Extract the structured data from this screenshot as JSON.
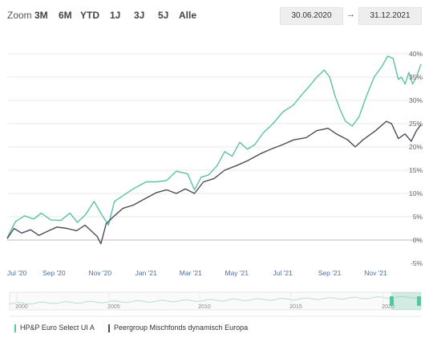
{
  "toolbar": {
    "zoom_label": "Zoom",
    "buttons": [
      "3M",
      "6M",
      "YTD",
      "1J",
      "3J",
      "5J",
      "Alle"
    ],
    "date_from": "30.06.2020",
    "date_to": "31.12.2021",
    "arrow": "→"
  },
  "navigator": {
    "year_labels": [
      "2000",
      "2005",
      "2010",
      "2015",
      "2020"
    ]
  },
  "colors": {
    "fund": "#5cc2a5",
    "peer": "#4a4d5a",
    "zero_line": "#bbbbbb",
    "grid": "#e8e8e8"
  },
  "chart_data": {
    "type": "line",
    "title": "",
    "xlabel": "",
    "ylabel": "",
    "ylim": [
      -5,
      42
    ],
    "xlim": [
      "2020-07-01",
      "2021-12-31"
    ],
    "grid": true,
    "legend_position": "bottom",
    "x_tick_labels": [
      "Jul '20",
      "Sep '20",
      "Nov '20",
      "Jan '21",
      "Mar '21",
      "May '21",
      "Jul '21",
      "Sep '21",
      "Nov '21"
    ],
    "x_tick_dates": [
      "2020-07-01",
      "2020-09-01",
      "2020-11-01",
      "2021-01-01",
      "2021-03-01",
      "2021-05-01",
      "2021-07-01",
      "2021-09-01",
      "2021-11-01"
    ],
    "y_ticks": [
      -5,
      0,
      5,
      10,
      15,
      20,
      25,
      30,
      35,
      40
    ],
    "y_tick_labels": [
      "-5%",
      "0%",
      "5%",
      "10%",
      "15%",
      "20%",
      "25%",
      "30%",
      "35%",
      "40%"
    ],
    "series": [
      {
        "name": "HP&P Euro Select UI A",
        "color": "#5cc2a5",
        "points": [
          [
            "2020-07-01",
            0.5
          ],
          [
            "2020-07-12",
            4
          ],
          [
            "2020-07-24",
            5.2
          ],
          [
            "2020-08-05",
            4.5
          ],
          [
            "2020-08-15",
            5.8
          ],
          [
            "2020-08-28",
            4.3
          ],
          [
            "2020-09-10",
            4.2
          ],
          [
            "2020-09-22",
            5.8
          ],
          [
            "2020-10-02",
            3.8
          ],
          [
            "2020-10-13",
            5.5
          ],
          [
            "2020-10-24",
            8.3
          ],
          [
            "2020-11-03",
            5.5
          ],
          [
            "2020-11-12",
            3.2
          ],
          [
            "2020-11-20",
            8.3
          ],
          [
            "2020-12-01",
            9.5
          ],
          [
            "2020-12-15",
            11
          ],
          [
            "2021-01-01",
            12.5
          ],
          [
            "2021-01-15",
            12.5
          ],
          [
            "2021-01-28",
            12.8
          ],
          [
            "2021-02-10",
            14.8
          ],
          [
            "2021-02-25",
            14.2
          ],
          [
            "2021-03-06",
            10.8
          ],
          [
            "2021-03-15",
            13.5
          ],
          [
            "2021-03-25",
            14
          ],
          [
            "2021-04-05",
            16
          ],
          [
            "2021-04-15",
            19
          ],
          [
            "2021-04-25",
            18
          ],
          [
            "2021-05-05",
            21
          ],
          [
            "2021-05-15",
            19.5
          ],
          [
            "2021-05-25",
            20.5
          ],
          [
            "2021-06-05",
            23
          ],
          [
            "2021-06-18",
            25
          ],
          [
            "2021-07-01",
            27.5
          ],
          [
            "2021-07-15",
            29
          ],
          [
            "2021-07-25",
            31
          ],
          [
            "2021-08-05",
            33
          ],
          [
            "2021-08-15",
            35
          ],
          [
            "2021-08-25",
            36.5
          ],
          [
            "2021-09-01",
            35
          ],
          [
            "2021-09-08",
            31
          ],
          [
            "2021-09-15",
            28
          ],
          [
            "2021-09-22",
            25.5
          ],
          [
            "2021-10-01",
            24.5
          ],
          [
            "2021-10-10",
            26.5
          ],
          [
            "2021-10-20",
            31
          ],
          [
            "2021-10-30",
            35
          ],
          [
            "2021-11-10",
            37.5
          ],
          [
            "2021-11-17",
            39.5
          ],
          [
            "2021-11-24",
            39
          ],
          [
            "2021-12-01",
            34.5
          ],
          [
            "2021-12-05",
            35
          ],
          [
            "2021-12-10",
            33.5
          ],
          [
            "2021-12-15",
            36
          ],
          [
            "2021-12-20",
            33.5
          ],
          [
            "2021-12-25",
            35
          ],
          [
            "2021-12-31",
            37.8
          ]
        ]
      },
      {
        "name": "Peergroup Mischfonds dynamisch Europa",
        "color": "#4a4d5a",
        "points": [
          [
            "2020-07-01",
            0.3
          ],
          [
            "2020-07-10",
            2.5
          ],
          [
            "2020-07-20",
            1.5
          ],
          [
            "2020-08-01",
            2.2
          ],
          [
            "2020-08-12",
            1.0
          ],
          [
            "2020-08-25",
            2.0
          ],
          [
            "2020-09-05",
            2.8
          ],
          [
            "2020-09-18",
            2.5
          ],
          [
            "2020-10-01",
            2.0
          ],
          [
            "2020-10-12",
            3.2
          ],
          [
            "2020-10-20",
            2.0
          ],
          [
            "2020-10-28",
            0.8
          ],
          [
            "2020-11-02",
            -0.8
          ],
          [
            "2020-11-09",
            3.5
          ],
          [
            "2020-11-20",
            5.2
          ],
          [
            "2020-12-01",
            6.8
          ],
          [
            "2020-12-15",
            7.5
          ],
          [
            "2021-01-01",
            9.0
          ],
          [
            "2021-01-15",
            10.2
          ],
          [
            "2021-01-28",
            10.8
          ],
          [
            "2021-02-10",
            10.0
          ],
          [
            "2021-02-22",
            11.0
          ],
          [
            "2021-03-06",
            10.0
          ],
          [
            "2021-03-18",
            12.5
          ],
          [
            "2021-04-01",
            13.2
          ],
          [
            "2021-04-15",
            15.0
          ],
          [
            "2021-05-01",
            16.0
          ],
          [
            "2021-05-15",
            17.0
          ],
          [
            "2021-06-01",
            18.5
          ],
          [
            "2021-06-15",
            19.5
          ],
          [
            "2021-07-01",
            20.5
          ],
          [
            "2021-07-15",
            21.5
          ],
          [
            "2021-08-01",
            22.0
          ],
          [
            "2021-08-15",
            23.5
          ],
          [
            "2021-08-30",
            24.0
          ],
          [
            "2021-09-10",
            22.8
          ],
          [
            "2021-09-25",
            21.5
          ],
          [
            "2021-10-05",
            20.0
          ],
          [
            "2021-10-15",
            21.5
          ],
          [
            "2021-11-01",
            23.5
          ],
          [
            "2021-11-15",
            25.5
          ],
          [
            "2021-11-22",
            25.0
          ],
          [
            "2021-12-01",
            21.8
          ],
          [
            "2021-12-10",
            22.8
          ],
          [
            "2021-12-18",
            21.2
          ],
          [
            "2021-12-25",
            23.5
          ],
          [
            "2021-12-31",
            24.8
          ]
        ]
      }
    ]
  }
}
